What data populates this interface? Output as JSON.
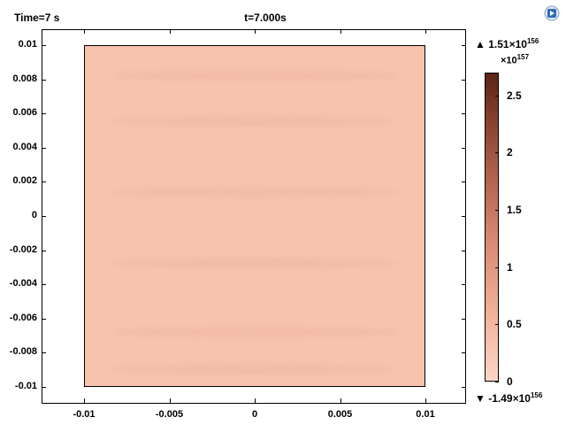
{
  "header": {
    "time_label": "Time=7 s",
    "plot_title": "t=7.000s"
  },
  "axes": {
    "x_ticks": [
      "-0.01",
      "-0.005",
      "0",
      "0.005",
      "0.01"
    ],
    "y_ticks": [
      "0.01",
      "0.008",
      "0.006",
      "0.004",
      "0.002",
      "0",
      "-0.002",
      "-0.004",
      "-0.006",
      "-0.008",
      "-0.01"
    ]
  },
  "colorbar": {
    "scale_base": "×10",
    "scale_exp": "157",
    "ticks": [
      "2.5",
      "2",
      "1.5",
      "1",
      "0.5",
      "0"
    ],
    "max_symbol": "▲",
    "max_base": "1.51×10",
    "max_exp": "156",
    "min_symbol": "▼",
    "min_base": "-1.49×10",
    "min_exp": "156"
  },
  "icons": {
    "app": "comsol-logo-icon"
  }
}
